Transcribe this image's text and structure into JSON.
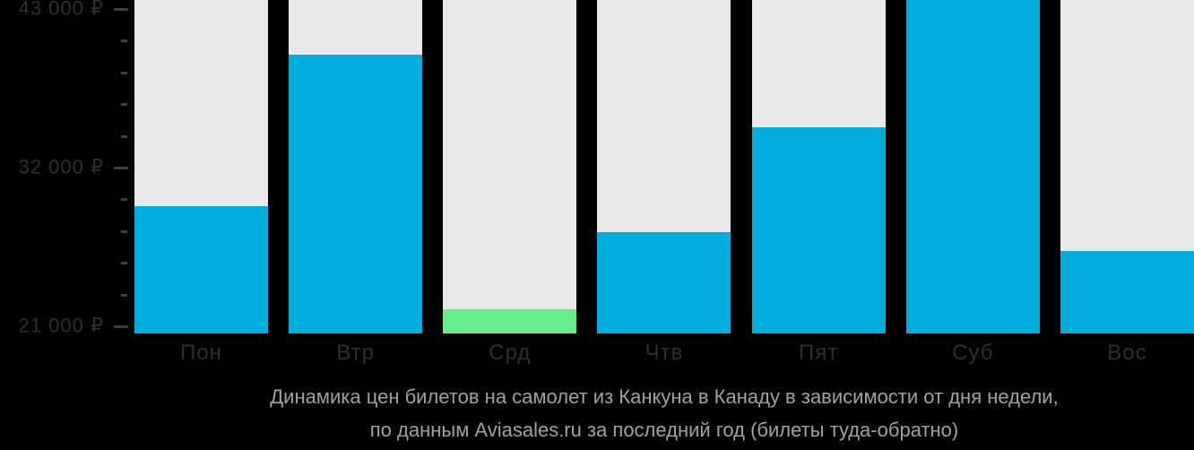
{
  "chart_data": {
    "type": "bar",
    "title": "Динамика цен билетов на самолет из Канкуна в Канаду в зависимости от дня недели,",
    "subtitle": "по данным Aviasales.ru за последний год (билеты туда-обратно)",
    "categories": [
      "Пон",
      "Втр",
      "Срд",
      "Чтв",
      "Пят",
      "Суб",
      "Вос"
    ],
    "values": [
      29300,
      39800,
      22200,
      27500,
      34800,
      43700,
      26200
    ],
    "currency": "₽",
    "lowest_value_index": 2,
    "clipped_at_top_index": 5,
    "xlabel": "",
    "ylabel": "",
    "legend": "none",
    "grid": "off",
    "y_axis": {
      "major_ticks": [
        {
          "value": 43000,
          "label": "43 000 ₽"
        },
        {
          "value": 32000,
          "label": "32 000 ₽"
        },
        {
          "value": 21000,
          "label": "21 000 ₽"
        }
      ],
      "minor_tick_values": [
        23200,
        25400,
        27600,
        29800,
        34200,
        36400,
        38600,
        40800
      ],
      "ylim": [
        20500,
        43620
      ]
    },
    "colors": {
      "bar_default": "#00aedc",
      "bar_lowest": "#68ec8b",
      "column_background": "#e9e9e9",
      "page_background": "#000000",
      "axis_label_text": "#2f2f2f",
      "tick_mark": "#3f3f3f",
      "title_text": "#9ba3a3"
    }
  }
}
